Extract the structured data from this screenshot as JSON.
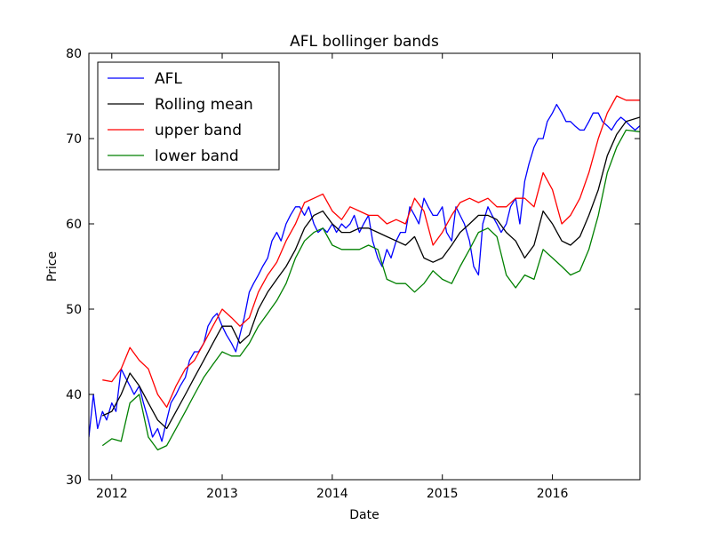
{
  "chart_data": {
    "type": "line",
    "title": "AFL bollinger bands",
    "xlabel": "Date",
    "ylabel": "Price",
    "xlim": [
      "2011-10-17",
      "2016-10-17"
    ],
    "ylim": [
      30,
      80
    ],
    "x_tick_labels": [
      "2012",
      "2013",
      "2014",
      "2015",
      "2016"
    ],
    "x_tick_dates": [
      "2012-01-01",
      "2013-01-01",
      "2014-01-01",
      "2015-01-01",
      "2016-01-01"
    ],
    "y_ticks": [
      30,
      40,
      50,
      60,
      70,
      80
    ],
    "legend_position": "top-left",
    "grid": false,
    "series": [
      {
        "name": "AFL",
        "color": "#0000ff",
        "x": [
          "2011-10-17",
          "2011-11-01",
          "2011-11-15",
          "2011-12-01",
          "2011-12-15",
          "2012-01-01",
          "2012-01-15",
          "2012-02-01",
          "2012-02-15",
          "2012-03-01",
          "2012-03-15",
          "2012-04-01",
          "2012-04-15",
          "2012-05-01",
          "2012-05-15",
          "2012-06-01",
          "2012-06-15",
          "2012-07-01",
          "2012-07-15",
          "2012-08-01",
          "2012-08-15",
          "2012-09-01",
          "2012-09-15",
          "2012-10-01",
          "2012-10-15",
          "2012-11-01",
          "2012-11-15",
          "2012-12-01",
          "2012-12-15",
          "2013-01-01",
          "2013-01-15",
          "2013-02-01",
          "2013-02-15",
          "2013-03-01",
          "2013-03-15",
          "2013-04-01",
          "2013-04-15",
          "2013-05-01",
          "2013-05-15",
          "2013-06-01",
          "2013-06-15",
          "2013-07-01",
          "2013-07-15",
          "2013-08-01",
          "2013-08-15",
          "2013-09-01",
          "2013-09-15",
          "2013-10-01",
          "2013-10-15",
          "2013-11-01",
          "2013-11-15",
          "2013-12-01",
          "2013-12-15",
          "2014-01-01",
          "2014-01-15",
          "2014-02-01",
          "2014-02-15",
          "2014-03-01",
          "2014-03-15",
          "2014-04-01",
          "2014-04-15",
          "2014-05-01",
          "2014-05-15",
          "2014-06-01",
          "2014-06-15",
          "2014-07-01",
          "2014-07-15",
          "2014-08-01",
          "2014-08-15",
          "2014-09-01",
          "2014-09-15",
          "2014-10-01",
          "2014-10-15",
          "2014-11-01",
          "2014-11-15",
          "2014-12-01",
          "2014-12-15",
          "2015-01-01",
          "2015-01-15",
          "2015-02-01",
          "2015-02-15",
          "2015-03-01",
          "2015-03-15",
          "2015-04-01",
          "2015-04-15",
          "2015-05-01",
          "2015-05-15",
          "2015-06-01",
          "2015-06-15",
          "2015-07-01",
          "2015-07-15",
          "2015-08-01",
          "2015-08-15",
          "2015-09-01",
          "2015-09-15",
          "2015-10-01",
          "2015-10-15",
          "2015-11-01",
          "2015-11-15",
          "2015-12-01",
          "2015-12-15",
          "2016-01-01",
          "2016-01-15",
          "2016-02-01",
          "2016-02-15",
          "2016-03-01",
          "2016-03-15",
          "2016-04-01",
          "2016-04-15",
          "2016-05-01",
          "2016-05-15",
          "2016-06-01",
          "2016-06-15",
          "2016-07-01",
          "2016-07-15",
          "2016-08-01",
          "2016-08-15",
          "2016-09-01",
          "2016-09-15",
          "2016-10-01",
          "2016-10-17"
        ],
        "y": [
          35,
          40,
          36,
          38,
          37,
          39,
          38,
          43,
          42,
          41,
          40,
          41,
          39,
          37,
          35,
          36,
          34.5,
          37,
          39,
          40,
          41,
          42,
          44,
          45,
          45,
          46,
          48,
          49,
          49.5,
          48,
          47,
          46,
          45,
          47,
          49,
          52,
          53,
          54,
          55,
          56,
          58,
          59,
          58,
          60,
          61,
          62,
          62,
          61,
          62,
          60,
          59,
          59.5,
          59,
          60,
          59,
          60,
          59.5,
          60,
          61,
          59,
          60,
          61,
          58,
          56,
          55,
          57,
          56,
          58,
          59,
          59,
          62,
          61,
          60,
          63,
          62,
          61,
          61,
          62,
          59,
          58,
          62,
          61,
          60,
          58,
          55,
          54,
          60,
          62,
          61,
          60,
          59,
          60,
          62,
          63,
          60,
          65,
          67,
          69,
          70,
          70,
          72,
          73,
          74,
          73,
          72,
          72,
          71.5,
          71,
          71,
          72,
          73,
          73,
          72,
          71.5,
          71,
          72,
          72.5,
          72,
          71.5,
          71,
          71.5
        ]
      },
      {
        "name": "Rolling mean",
        "color": "#000000",
        "x": [
          "2011-12-01",
          "2012-01-01",
          "2012-02-01",
          "2012-03-01",
          "2012-04-01",
          "2012-05-01",
          "2012-06-01",
          "2012-07-01",
          "2012-08-01",
          "2012-09-01",
          "2012-10-01",
          "2012-11-01",
          "2012-12-01",
          "2013-01-01",
          "2013-02-01",
          "2013-03-01",
          "2013-04-01",
          "2013-05-01",
          "2013-06-01",
          "2013-07-01",
          "2013-08-01",
          "2013-09-01",
          "2013-10-01",
          "2013-11-01",
          "2013-12-01",
          "2014-01-01",
          "2014-02-01",
          "2014-03-01",
          "2014-04-01",
          "2014-05-01",
          "2014-06-01",
          "2014-07-01",
          "2014-08-01",
          "2014-09-01",
          "2014-10-01",
          "2014-11-01",
          "2014-12-01",
          "2015-01-01",
          "2015-02-01",
          "2015-03-01",
          "2015-04-01",
          "2015-05-01",
          "2015-06-01",
          "2015-07-01",
          "2015-08-01",
          "2015-09-01",
          "2015-10-01",
          "2015-11-01",
          "2015-12-01",
          "2016-01-01",
          "2016-02-01",
          "2016-03-01",
          "2016-04-01",
          "2016-05-01",
          "2016-06-01",
          "2016-07-01",
          "2016-08-01",
          "2016-09-01",
          "2016-10-17"
        ],
        "y": [
          37.5,
          38,
          40,
          42.5,
          41,
          39,
          37,
          36,
          38,
          40,
          42,
          44,
          46,
          48,
          48,
          46,
          47,
          50,
          52,
          53.5,
          55,
          57,
          59.5,
          61,
          61.5,
          60,
          59,
          59,
          59.5,
          59.5,
          59,
          58.5,
          58,
          57.5,
          58.5,
          56,
          55.5,
          56,
          57.5,
          59,
          60,
          61,
          61,
          60.5,
          59,
          58,
          56,
          57.5,
          61.5,
          60,
          58,
          57.5,
          58.5,
          61,
          64,
          68,
          70.5,
          72,
          72.5
        ]
      },
      {
        "name": "upper band",
        "color": "#ff0000",
        "x": [
          "2011-12-01",
          "2012-01-01",
          "2012-02-01",
          "2012-03-01",
          "2012-04-01",
          "2012-05-01",
          "2012-06-01",
          "2012-07-01",
          "2012-08-01",
          "2012-09-01",
          "2012-10-01",
          "2012-11-01",
          "2012-12-01",
          "2013-01-01",
          "2013-02-01",
          "2013-03-01",
          "2013-04-01",
          "2013-05-01",
          "2013-06-01",
          "2013-07-01",
          "2013-08-01",
          "2013-09-01",
          "2013-10-01",
          "2013-11-01",
          "2013-12-01",
          "2014-01-01",
          "2014-02-01",
          "2014-03-01",
          "2014-04-01",
          "2014-05-01",
          "2014-06-01",
          "2014-07-01",
          "2014-08-01",
          "2014-09-01",
          "2014-10-01",
          "2014-11-01",
          "2014-12-01",
          "2015-01-01",
          "2015-02-01",
          "2015-03-01",
          "2015-04-01",
          "2015-05-01",
          "2015-06-01",
          "2015-07-01",
          "2015-08-01",
          "2015-09-01",
          "2015-10-01",
          "2015-11-01",
          "2015-12-01",
          "2016-01-01",
          "2016-02-01",
          "2016-03-01",
          "2016-04-01",
          "2016-05-01",
          "2016-06-01",
          "2016-07-01",
          "2016-08-01",
          "2016-09-01",
          "2016-10-17"
        ],
        "y": [
          41.7,
          41.5,
          43,
          45.5,
          44,
          43,
          40,
          38.5,
          41,
          43,
          44,
          46,
          48,
          50,
          49,
          48,
          49,
          52,
          54,
          55.5,
          58,
          60,
          62.5,
          63,
          63.5,
          61.5,
          60.5,
          62,
          61.5,
          61,
          61,
          60,
          60.5,
          60,
          63,
          61.5,
          57.5,
          59,
          61,
          62.5,
          63,
          62.5,
          63,
          62,
          62,
          63,
          63,
          62,
          66,
          64,
          60,
          61,
          63,
          66,
          70,
          73,
          75,
          74.5,
          74.5
        ]
      },
      {
        "name": "lower band",
        "color": "#008000",
        "x": [
          "2011-12-01",
          "2012-01-01",
          "2012-02-01",
          "2012-03-01",
          "2012-04-01",
          "2012-05-01",
          "2012-06-01",
          "2012-07-01",
          "2012-08-01",
          "2012-09-01",
          "2012-10-01",
          "2012-11-01",
          "2012-12-01",
          "2013-01-01",
          "2013-02-01",
          "2013-03-01",
          "2013-04-01",
          "2013-05-01",
          "2013-06-01",
          "2013-07-01",
          "2013-08-01",
          "2013-09-01",
          "2013-10-01",
          "2013-11-01",
          "2013-12-01",
          "2014-01-01",
          "2014-02-01",
          "2014-03-01",
          "2014-04-01",
          "2014-05-01",
          "2014-06-01",
          "2014-07-01",
          "2014-08-01",
          "2014-09-01",
          "2014-10-01",
          "2014-11-01",
          "2014-12-01",
          "2015-01-01",
          "2015-02-01",
          "2015-03-01",
          "2015-04-01",
          "2015-05-01",
          "2015-06-01",
          "2015-07-01",
          "2015-08-01",
          "2015-09-01",
          "2015-10-01",
          "2015-11-01",
          "2015-12-01",
          "2016-01-01",
          "2016-02-01",
          "2016-03-01",
          "2016-04-01",
          "2016-05-01",
          "2016-06-01",
          "2016-07-01",
          "2016-08-01",
          "2016-09-01",
          "2016-10-17"
        ],
        "y": [
          34,
          34.8,
          34.5,
          39,
          40,
          35,
          33.5,
          34,
          36,
          38,
          40,
          42,
          43.5,
          45,
          44.5,
          44.5,
          46,
          48,
          49.5,
          51,
          53,
          56,
          58,
          59,
          59.5,
          57.5,
          57,
          57,
          57,
          57.5,
          57,
          53.5,
          53,
          53,
          52,
          53,
          54.5,
          53.5,
          53,
          55,
          57,
          59,
          59.5,
          58.5,
          54,
          52.5,
          54,
          53.5,
          57,
          56,
          55,
          54,
          54.5,
          57,
          61,
          66,
          69,
          71,
          70.8
        ]
      }
    ]
  }
}
